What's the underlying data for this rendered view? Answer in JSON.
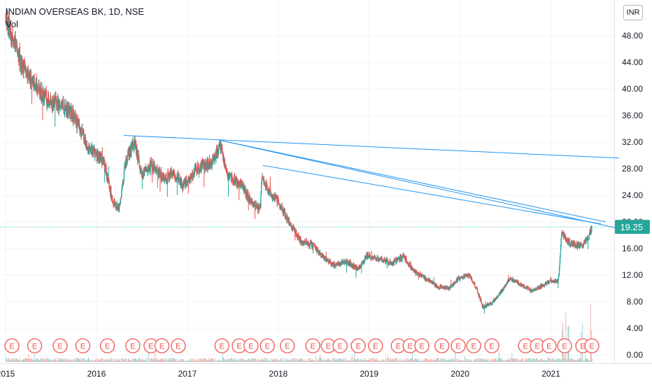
{
  "header": {
    "title": "INDIAN OVERSEAS BK, 1D, NSE",
    "volume_label": "Vol"
  },
  "currency_button": "INR",
  "price_label": {
    "value": "19.25",
    "color": "#26a69a"
  },
  "colors": {
    "up": "#26a69a",
    "down": "#ef5350",
    "trendline": "#2196f3",
    "earnings": "#ef5350"
  },
  "earnings_marker_label": "E",
  "chart_data": {
    "type": "candlestick",
    "title": "INDIAN OVERSEAS BK, 1D, NSE",
    "y_axis": {
      "min": 0,
      "max": 52,
      "ticks": [
        "0.00",
        "4.00",
        "8.00",
        "12.00",
        "16.00",
        "20.00",
        "24.00",
        "28.00",
        "32.00",
        "36.00",
        "40.00",
        "44.00",
        "48.00"
      ]
    },
    "x_axis": {
      "range": [
        2015.0,
        2021.75
      ],
      "ticks": [
        "2015",
        "2016",
        "2017",
        "2018",
        "2019",
        "2020",
        "2021"
      ]
    },
    "last_price": 19.25,
    "price_path": [
      [
        2015.0,
        51
      ],
      [
        2015.1,
        47
      ],
      [
        2015.2,
        43
      ],
      [
        2015.3,
        41
      ],
      [
        2015.45,
        38.5
      ],
      [
        2015.6,
        37.5
      ],
      [
        2015.75,
        36
      ],
      [
        2015.9,
        31.5
      ],
      [
        2016.0,
        30
      ],
      [
        2016.08,
        29
      ],
      [
        2016.18,
        23
      ],
      [
        2016.25,
        22
      ],
      [
        2016.32,
        29
      ],
      [
        2016.42,
        32
      ],
      [
        2016.5,
        27
      ],
      [
        2016.6,
        28.5
      ],
      [
        2016.75,
        26.5
      ],
      [
        2016.85,
        27.5
      ],
      [
        2016.95,
        25.5
      ],
      [
        2017.1,
        28
      ],
      [
        2017.28,
        29
      ],
      [
        2017.36,
        31.5
      ],
      [
        2017.45,
        27
      ],
      [
        2017.6,
        25.5
      ],
      [
        2017.7,
        23
      ],
      [
        2017.8,
        22
      ],
      [
        2017.82,
        26.5
      ],
      [
        2017.9,
        24.5
      ],
      [
        2018.0,
        23
      ],
      [
        2018.12,
        20
      ],
      [
        2018.25,
        17
      ],
      [
        2018.38,
        16.5
      ],
      [
        2018.5,
        14.5
      ],
      [
        2018.62,
        13.5
      ],
      [
        2018.75,
        14
      ],
      [
        2018.88,
        13
      ],
      [
        2018.98,
        15
      ],
      [
        2019.1,
        14.5
      ],
      [
        2019.25,
        13.8
      ],
      [
        2019.38,
        14.8
      ],
      [
        2019.5,
        12.5
      ],
      [
        2019.62,
        11.5
      ],
      [
        2019.75,
        10.3
      ],
      [
        2019.88,
        10
      ],
      [
        2019.98,
        11.5
      ],
      [
        2020.1,
        12
      ],
      [
        2020.18,
        10
      ],
      [
        2020.25,
        7.2
      ],
      [
        2020.35,
        7.8
      ],
      [
        2020.45,
        9.5
      ],
      [
        2020.55,
        11.5
      ],
      [
        2020.68,
        10.5
      ],
      [
        2020.78,
        9.7
      ],
      [
        2020.92,
        10.5
      ],
      [
        2021.0,
        11.2
      ],
      [
        2021.08,
        11
      ],
      [
        2021.12,
        18.5
      ],
      [
        2021.18,
        17
      ],
      [
        2021.28,
        16.5
      ],
      [
        2021.35,
        16.5
      ],
      [
        2021.42,
        18
      ],
      [
        2021.45,
        19.25
      ]
    ],
    "trendlines": [
      {
        "from": [
          2016.3,
          33.0
        ],
        "to": [
          2021.75,
          29.6
        ]
      },
      {
        "from": [
          2017.35,
          32.3
        ],
        "to": [
          2021.75,
          19.0
        ]
      },
      {
        "from": [
          2017.35,
          32.3
        ],
        "to": [
          2021.6,
          20.0
        ]
      },
      {
        "from": [
          2017.83,
          28.5
        ],
        "to": [
          2021.55,
          19.7
        ]
      }
    ],
    "earnings_dates": [
      2015.07,
      2015.32,
      2015.6,
      2015.85,
      2016.12,
      2016.4,
      2016.6,
      2016.72,
      2016.9,
      2017.38,
      2017.57,
      2017.7,
      2017.88,
      2018.1,
      2018.38,
      2018.55,
      2018.68,
      2018.88,
      2019.07,
      2019.32,
      2019.45,
      2019.58,
      2019.8,
      2019.98,
      2020.15,
      2020.35,
      2020.72,
      2020.85,
      2020.98,
      2021.15,
      2021.35,
      2021.45
    ]
  }
}
